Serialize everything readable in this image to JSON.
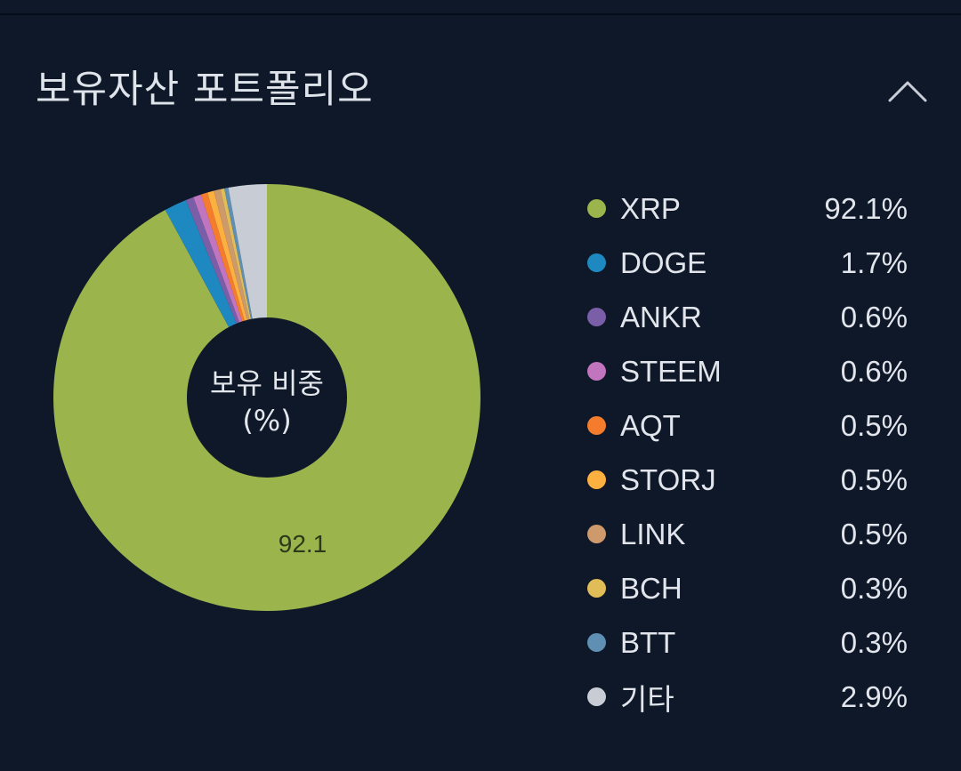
{
  "header": {
    "title": "보유자산 포트폴리오",
    "collapse_icon": "chevron-up-icon"
  },
  "donut": {
    "center_label_line1": "보유 비중",
    "center_label_line2": "(%)",
    "slice_label": "92.1"
  },
  "legend": [
    {
      "name": "XRP",
      "value": "92.1%",
      "color": "#9bb44c"
    },
    {
      "name": "DOGE",
      "value": "1.7%",
      "color": "#1e88c0"
    },
    {
      "name": "ANKR",
      "value": "0.6%",
      "color": "#7a5ea8"
    },
    {
      "name": "STEEM",
      "value": "0.6%",
      "color": "#c275bf"
    },
    {
      "name": "AQT",
      "value": "0.5%",
      "color": "#f47c2c"
    },
    {
      "name": "STORJ",
      "value": "0.5%",
      "color": "#fbb040"
    },
    {
      "name": "LINK",
      "value": "0.5%",
      "color": "#cf9a6b"
    },
    {
      "name": "BCH",
      "value": "0.3%",
      "color": "#e0bd57"
    },
    {
      "name": "BTT",
      "value": "0.3%",
      "color": "#5f8fb3"
    },
    {
      "name": "기타",
      "value": "2.9%",
      "color": "#c8ccd4"
    }
  ],
  "colors": {
    "background": "#0e1829",
    "text": "#dfe3ea"
  },
  "chart_data": {
    "type": "pie",
    "title": "보유자산 포트폴리오",
    "subtitle": "보유 비중 (%)",
    "donut": true,
    "categories": [
      "XRP",
      "DOGE",
      "ANKR",
      "STEEM",
      "AQT",
      "STORJ",
      "LINK",
      "BCH",
      "BTT",
      "기타"
    ],
    "values": [
      92.1,
      1.7,
      0.6,
      0.6,
      0.5,
      0.5,
      0.5,
      0.3,
      0.3,
      2.9
    ],
    "colors": [
      "#9bb44c",
      "#1e88c0",
      "#7a5ea8",
      "#c275bf",
      "#f47c2c",
      "#fbb040",
      "#cf9a6b",
      "#e0bd57",
      "#5f8fb3",
      "#c8ccd4"
    ],
    "data_labels": [
      "92.1"
    ],
    "legend_position": "right",
    "start_angle": 0,
    "direction": "clockwise"
  }
}
